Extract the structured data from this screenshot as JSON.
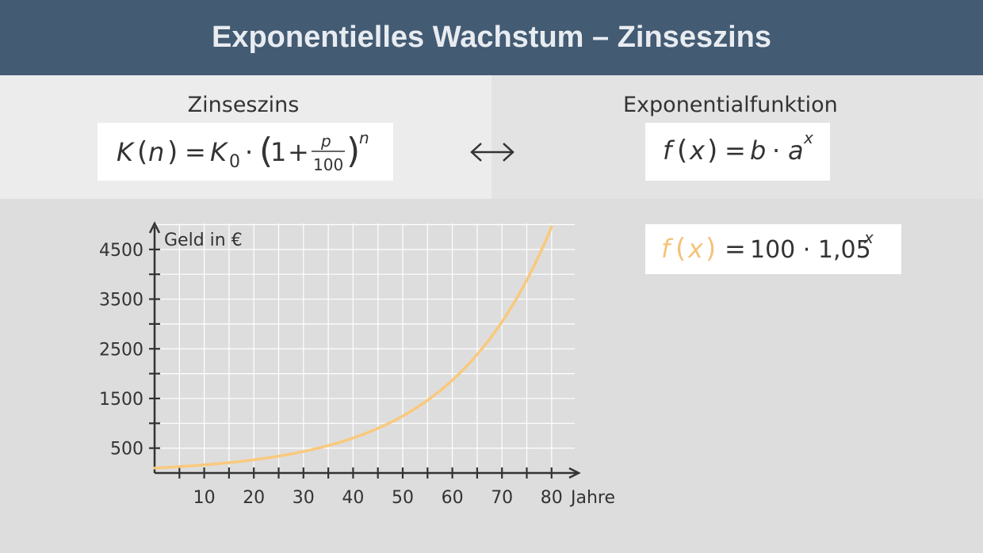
{
  "header": {
    "title": "Exponentielles Wachstum – Zinseszins"
  },
  "left": {
    "heading": "Zinseszins",
    "formula": {
      "K": "K",
      "n": "n",
      "eq": "=",
      "K0": "K",
      "sub0": "0",
      "dot": "·",
      "one": "1",
      "plus": "+",
      "p": "p",
      "hundred": "100",
      "exp_n": "n"
    }
  },
  "right": {
    "heading": "Exponentialfunktion",
    "formula": {
      "f": "f",
      "x": "x",
      "eq": "=",
      "b": "b",
      "dot": "·",
      "a": "a",
      "exp_x": "x"
    },
    "specific": {
      "f": "f",
      "x": "x",
      "eq": "=",
      "rest": "100 · 1,05",
      "exp_x": "x"
    }
  },
  "arrow": "⟷",
  "colors": {
    "header_bg": "#435b73",
    "curve": "#f9c97d",
    "highlight": "#f3c37a"
  },
  "chart_data": {
    "type": "line",
    "title": "",
    "xlabel": "Jahre",
    "ylabel": "Geld in €",
    "xlim": [
      0,
      82
    ],
    "ylim": [
      0,
      5000
    ],
    "x_ticks": [
      10,
      20,
      30,
      40,
      50,
      60,
      70,
      80
    ],
    "y_tick_labels": [
      500,
      1500,
      2500,
      3500,
      4500
    ],
    "grid": true,
    "series": [
      {
        "function": "f(x) = 100 · 1,05^x",
        "x": [
          0,
          10,
          20,
          30,
          40,
          50,
          60,
          70,
          80
        ],
        "values": [
          100,
          163,
          265,
          432,
          704,
          1147,
          1868,
          3043,
          4956
        ]
      }
    ]
  }
}
